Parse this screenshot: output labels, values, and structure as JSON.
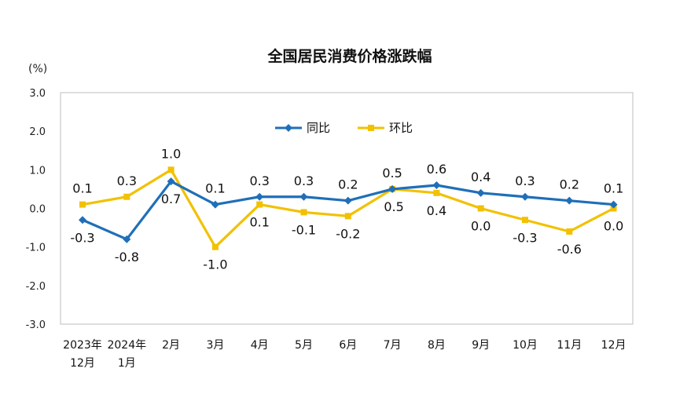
{
  "chart_data": {
    "type": "line",
    "title": "全国居民消费价格涨跌幅",
    "ylabel": "(%)",
    "ylim": [
      -3.0,
      3.0
    ],
    "yticks": [
      "3.0",
      "2.0",
      "1.0",
      "0.0",
      "-1.0",
      "-2.0",
      "-3.0"
    ],
    "categories": [
      [
        "2023年",
        "12月"
      ],
      [
        "2024年",
        "1月"
      ],
      [
        "2月"
      ],
      [
        "3月"
      ],
      [
        "4月"
      ],
      [
        "5月"
      ],
      [
        "6月"
      ],
      [
        "7月"
      ],
      [
        "8月"
      ],
      [
        "9月"
      ],
      [
        "10月"
      ],
      [
        "11月"
      ],
      [
        "12月"
      ]
    ],
    "grid": false,
    "legend_position": "top-center",
    "series": [
      {
        "name": "同比",
        "color": "#1f6fb8",
        "marker": "diamond",
        "values": [
          -0.3,
          -0.8,
          0.7,
          0.1,
          0.3,
          0.3,
          0.2,
          0.5,
          0.6,
          0.4,
          0.3,
          0.2,
          0.1
        ],
        "labels": [
          "-0.3",
          "-0.8",
          "0.7",
          "0.1",
          "0.3",
          "0.3",
          "0.2",
          "0.5",
          "0.6",
          "0.4",
          "0.3",
          "0.2",
          "0.1"
        ]
      },
      {
        "name": "环比",
        "color": "#f2c100",
        "marker": "square",
        "values": [
          0.1,
          0.3,
          1.0,
          -1.0,
          0.1,
          -0.1,
          -0.2,
          0.5,
          0.4,
          0.0,
          -0.3,
          -0.6,
          0.0
        ],
        "labels": [
          "0.1",
          "0.3",
          "1.0",
          "-1.0",
          "0.1",
          "-0.1",
          "-0.2",
          "0.5",
          "0.4",
          "0.0",
          "-0.3",
          "-0.6",
          "0.0"
        ]
      }
    ]
  }
}
